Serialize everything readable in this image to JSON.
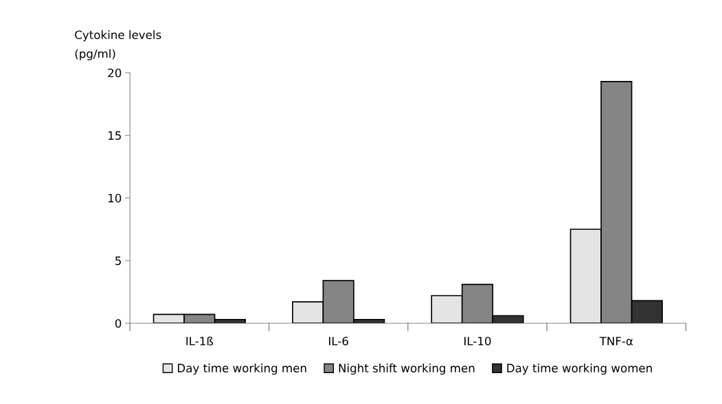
{
  "chart_data": {
    "type": "bar",
    "ylabel": "Cytokine levels\n(pg/ml)",
    "categories": [
      "IL-1ß",
      "IL-6",
      "IL-10",
      "TNF-α"
    ],
    "series": [
      {
        "name": "Day time working men",
        "color": "#e4e4e4",
        "values": [
          0.7,
          1.7,
          2.2,
          7.5
        ]
      },
      {
        "name": "Night shift working men",
        "color": "#858585",
        "values": [
          0.7,
          3.4,
          3.1,
          19.3
        ]
      },
      {
        "name": "Day time working women",
        "color": "#333333",
        "values": [
          0.3,
          0.3,
          0.6,
          1.8
        ]
      }
    ],
    "ylim": [
      0,
      20
    ],
    "yticks": [
      0,
      5,
      10,
      15,
      20
    ],
    "grid": false,
    "legend": "bottom"
  }
}
